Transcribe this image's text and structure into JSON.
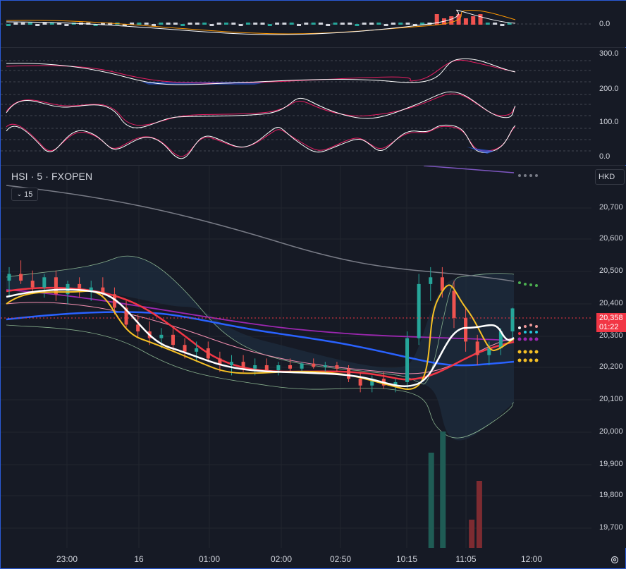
{
  "symbol": {
    "title": "HSI · 5 · FXOPEN",
    "indicator_count": "15",
    "currency": "HKD"
  },
  "colors": {
    "up": "#26a69a",
    "down": "#ef5350",
    "ema_white": "#ffffff",
    "ema_yellow": "#f6c025",
    "ema_red": "#f23645",
    "ema_blue": "#2962ff",
    "ema_purple": "#9c27b0",
    "ma_gray": "#787b86",
    "bb": "#a5d6a7",
    "accent": "#2a5bd7"
  },
  "last_price": {
    "value": "20,358",
    "countdown": "01:22"
  },
  "oscillator_axis": [
    "0.0"
  ],
  "stoch_axis": [
    "300.0",
    "200.0",
    "100.0",
    "0.0"
  ],
  "price_axis": [
    "20,700",
    "20,600",
    "20,500",
    "20,400",
    "20,300",
    "20,200",
    "20,100",
    "20,000",
    "19,900",
    "19,800",
    "19,700"
  ],
  "time_axis": [
    "23:00",
    "16",
    "01:00",
    "02:00",
    "02:50",
    "10:15",
    "11:05",
    "12:00"
  ],
  "chart_data": {
    "type": "candlestick",
    "ylim": [
      19650,
      20780
    ],
    "candles": [
      [
        20440,
        20480,
        20390,
        20460
      ],
      [
        20460,
        20500,
        20430,
        20440
      ],
      [
        20440,
        20470,
        20400,
        20420
      ],
      [
        20420,
        20460,
        20390,
        20450
      ],
      [
        20450,
        20470,
        20380,
        20400
      ],
      [
        20400,
        20440,
        20370,
        20430
      ],
      [
        20430,
        20450,
        20390,
        20410
      ],
      [
        20410,
        20440,
        20380,
        20420
      ],
      [
        20420,
        20450,
        20390,
        20400
      ],
      [
        20400,
        20420,
        20340,
        20360
      ],
      [
        20360,
        20380,
        20300,
        20310
      ],
      [
        20310,
        20340,
        20270,
        20290
      ],
      [
        20290,
        20320,
        20250,
        20270
      ],
      [
        20270,
        20300,
        20240,
        20280
      ],
      [
        20280,
        20300,
        20230,
        20250
      ],
      [
        20250,
        20270,
        20210,
        20230
      ],
      [
        20230,
        20260,
        20200,
        20240
      ],
      [
        20240,
        20260,
        20200,
        20210
      ],
      [
        20210,
        20230,
        20170,
        20190
      ],
      [
        20190,
        20220,
        20160,
        20200
      ],
      [
        20200,
        20220,
        20170,
        20180
      ],
      [
        20180,
        20210,
        20160,
        20190
      ],
      [
        20190,
        20210,
        20170,
        20175
      ],
      [
        20175,
        20200,
        20160,
        20190
      ],
      [
        20190,
        20210,
        20170,
        20180
      ],
      [
        20180,
        20200,
        20170,
        20195
      ],
      [
        20195,
        20210,
        20180,
        20185
      ],
      [
        20185,
        20200,
        20170,
        20190
      ],
      [
        20190,
        20200,
        20170,
        20180
      ],
      [
        20180,
        20190,
        20140,
        20150
      ],
      [
        20150,
        20170,
        20110,
        20130
      ],
      [
        20130,
        20160,
        20110,
        20150
      ],
      [
        20150,
        20170,
        20120,
        20130
      ],
      [
        20130,
        20150,
        20110,
        20140
      ],
      [
        20140,
        20290,
        20120,
        20270
      ],
      [
        20270,
        20460,
        20250,
        20430
      ],
      [
        20430,
        20480,
        20380,
        20450
      ],
      [
        20450,
        20480,
        20390,
        20410
      ],
      [
        20410,
        20440,
        20300,
        20330
      ],
      [
        20330,
        20360,
        20230,
        20260
      ],
      [
        20260,
        20280,
        20190,
        20220
      ],
      [
        20220,
        20260,
        20190,
        20240
      ],
      [
        20240,
        20300,
        20220,
        20290
      ],
      [
        20290,
        20360,
        20270,
        20358
      ]
    ],
    "volume": {
      "bars": [
        [
          0.845,
          135
        ],
        [
          0.868,
          165
        ],
        [
          0.925,
          40
        ],
        [
          0.94,
          95
        ]
      ]
    }
  }
}
